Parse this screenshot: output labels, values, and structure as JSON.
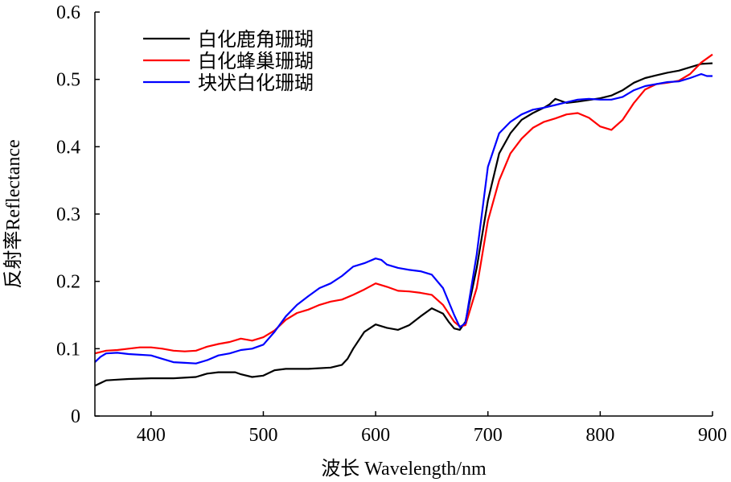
{
  "chart_data": {
    "type": "line",
    "xlabel": "波长 Wavelength/nm",
    "ylabel": "反射率Reflectance",
    "xlim": [
      350,
      900
    ],
    "ylim": [
      0,
      0.6
    ],
    "xticks": [
      400,
      500,
      600,
      700,
      800,
      900
    ],
    "yticks": [
      0,
      0.1,
      0.2,
      0.3,
      0.4,
      0.5,
      0.6
    ],
    "xtick_labels": [
      "400",
      "500",
      "600",
      "700",
      "800",
      "900"
    ],
    "ytick_labels": [
      "0",
      "0.1",
      "0.2",
      "0.3",
      "0.4",
      "0.5",
      "0.6"
    ],
    "grid": false,
    "legend_position": "top-left",
    "series": [
      {
        "name": "白化鹿角珊瑚",
        "color": "#000000",
        "x": [
          350,
          360,
          370,
          380,
          400,
          420,
          440,
          450,
          460,
          475,
          480,
          490,
          500,
          510,
          520,
          540,
          560,
          570,
          575,
          580,
          590,
          600,
          610,
          620,
          630,
          640,
          650,
          660,
          665,
          670,
          675,
          680,
          690,
          700,
          710,
          720,
          730,
          740,
          750,
          755,
          760,
          765,
          770,
          780,
          800,
          810,
          820,
          830,
          840,
          850,
          860,
          870,
          880,
          890,
          900
        ],
        "y": [
          0.045,
          0.053,
          0.054,
          0.055,
          0.056,
          0.056,
          0.058,
          0.063,
          0.065,
          0.065,
          0.062,
          0.058,
          0.06,
          0.068,
          0.07,
          0.07,
          0.072,
          0.076,
          0.085,
          0.1,
          0.125,
          0.136,
          0.131,
          0.128,
          0.135,
          0.148,
          0.16,
          0.152,
          0.14,
          0.13,
          0.128,
          0.14,
          0.22,
          0.32,
          0.39,
          0.42,
          0.44,
          0.45,
          0.458,
          0.463,
          0.471,
          0.468,
          0.465,
          0.467,
          0.472,
          0.476,
          0.484,
          0.495,
          0.502,
          0.506,
          0.51,
          0.513,
          0.518,
          0.523,
          0.524
        ]
      },
      {
        "name": "白化蜂巢珊瑚",
        "color": "#ff0000",
        "x": [
          350,
          360,
          370,
          380,
          390,
          400,
          410,
          420,
          430,
          440,
          450,
          460,
          470,
          480,
          490,
          500,
          510,
          520,
          530,
          540,
          550,
          560,
          570,
          580,
          590,
          600,
          610,
          620,
          630,
          640,
          650,
          660,
          670,
          675,
          680,
          690,
          700,
          710,
          720,
          730,
          740,
          750,
          760,
          770,
          780,
          790,
          800,
          810,
          820,
          830,
          840,
          850,
          860,
          870,
          880,
          890,
          900
        ],
        "y": [
          0.093,
          0.097,
          0.098,
          0.1,
          0.102,
          0.102,
          0.1,
          0.097,
          0.096,
          0.097,
          0.103,
          0.107,
          0.11,
          0.115,
          0.112,
          0.117,
          0.127,
          0.143,
          0.153,
          0.158,
          0.165,
          0.17,
          0.173,
          0.18,
          0.188,
          0.197,
          0.192,
          0.186,
          0.185,
          0.183,
          0.18,
          0.165,
          0.14,
          0.133,
          0.135,
          0.19,
          0.29,
          0.35,
          0.39,
          0.412,
          0.428,
          0.437,
          0.442,
          0.448,
          0.45,
          0.443,
          0.43,
          0.425,
          0.44,
          0.465,
          0.485,
          0.493,
          0.495,
          0.498,
          0.508,
          0.525,
          0.537
        ]
      },
      {
        "name": "块状白化珊瑚",
        "color": "#0000ff",
        "x": [
          350,
          355,
          360,
          370,
          380,
          400,
          410,
          420,
          430,
          440,
          450,
          460,
          470,
          480,
          490,
          500,
          510,
          520,
          530,
          540,
          550,
          560,
          570,
          580,
          590,
          600,
          605,
          610,
          620,
          630,
          640,
          650,
          660,
          670,
          675,
          680,
          690,
          700,
          710,
          720,
          730,
          740,
          750,
          760,
          770,
          780,
          790,
          800,
          810,
          820,
          830,
          840,
          850,
          860,
          870,
          880,
          890,
          895,
          900
        ],
        "y": [
          0.08,
          0.088,
          0.093,
          0.094,
          0.092,
          0.09,
          0.085,
          0.08,
          0.079,
          0.078,
          0.083,
          0.09,
          0.093,
          0.098,
          0.1,
          0.106,
          0.125,
          0.148,
          0.165,
          0.178,
          0.19,
          0.197,
          0.208,
          0.222,
          0.227,
          0.234,
          0.232,
          0.225,
          0.22,
          0.217,
          0.215,
          0.21,
          0.19,
          0.15,
          0.132,
          0.138,
          0.24,
          0.37,
          0.42,
          0.437,
          0.448,
          0.455,
          0.458,
          0.462,
          0.466,
          0.47,
          0.471,
          0.47,
          0.47,
          0.474,
          0.484,
          0.49,
          0.493,
          0.496,
          0.497,
          0.502,
          0.508,
          0.505,
          0.505
        ]
      }
    ]
  }
}
